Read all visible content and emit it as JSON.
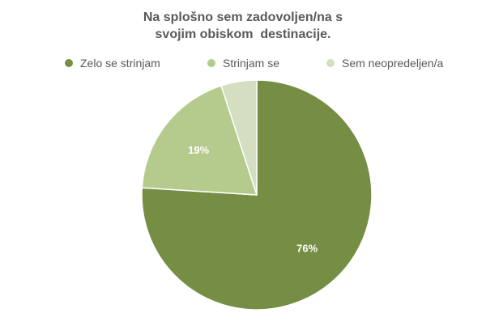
{
  "chart_data": {
    "type": "pie",
    "title_lines": [
      "Na splošno sem zadovoljen/na s",
      "svojim obiskom  destinacije."
    ],
    "categories": [
      "Zelo se strinjam",
      "Strinjam se",
      "Sem neopredeljen/a"
    ],
    "values": [
      76,
      19,
      5
    ],
    "data_labels": [
      "76%",
      "19%",
      ""
    ],
    "colors": [
      "#758e44",
      "#b5cb8e",
      "#d3dfc0"
    ],
    "legend_position": "top"
  }
}
